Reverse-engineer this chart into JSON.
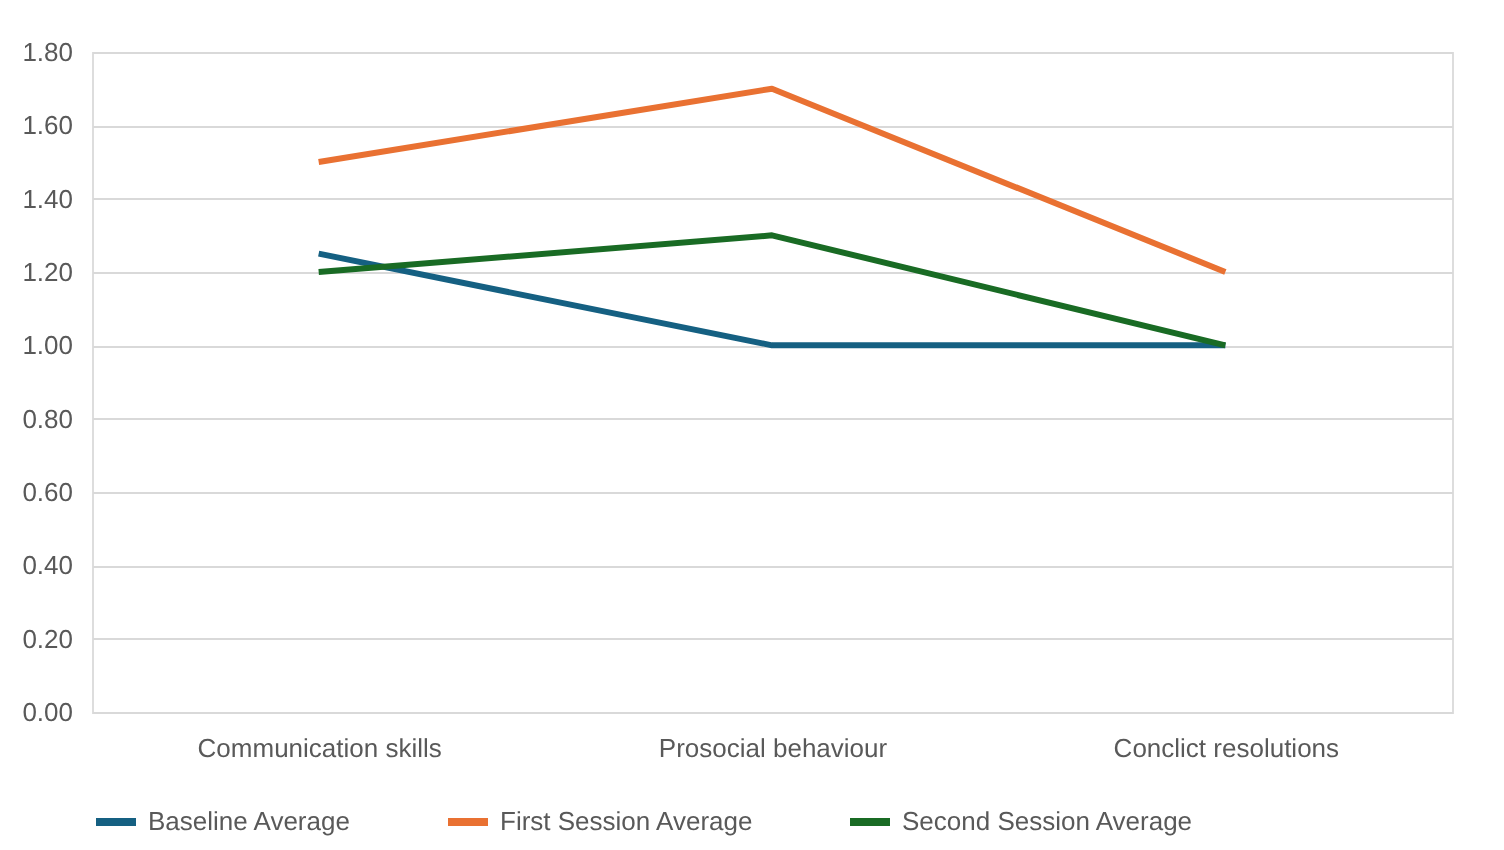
{
  "chart_data": {
    "type": "line",
    "categories": [
      "Communication skills",
      "Prosocial behaviour",
      "Conclict resolutions"
    ],
    "series": [
      {
        "name": "Baseline Average",
        "color": "#156082",
        "values": [
          1.25,
          1.0,
          1.0
        ]
      },
      {
        "name": "First Session Average",
        "color": "#e97132",
        "values": [
          1.5,
          1.7,
          1.2
        ]
      },
      {
        "name": "Second Session Average",
        "color": "#196b24",
        "values": [
          1.2,
          1.3,
          1.0
        ]
      }
    ],
    "ylim": [
      0,
      1.8
    ],
    "yticks": [
      {
        "value": 0,
        "label": "0.00"
      },
      {
        "value": 0.2,
        "label": "0.20"
      },
      {
        "value": 0.4,
        "label": "0.40"
      },
      {
        "value": 0.6,
        "label": "0.60"
      },
      {
        "value": 0.8,
        "label": "0.80"
      },
      {
        "value": 1.0,
        "label": "1.00"
      },
      {
        "value": 1.2,
        "label": "1.20"
      },
      {
        "value": 1.4,
        "label": "1.40"
      },
      {
        "value": 1.6,
        "label": "1.60"
      },
      {
        "value": 1.8,
        "label": "1.80"
      }
    ],
    "grid": "y",
    "legend": "bottom",
    "marker": "none",
    "line_style": "solid"
  }
}
